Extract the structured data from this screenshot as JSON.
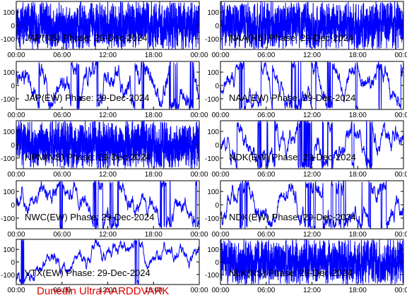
{
  "footer": {
    "text": "Dunedin Ultra AARDDVARK",
    "color": "#e00000"
  },
  "colors": {
    "trace": "#0000ff",
    "label": "#000000",
    "background": "#ffffff",
    "frame": "#000000"
  },
  "chart_data": [
    {
      "type": "line",
      "title": "JAP(NS) Phase: 29-Dec-2024",
      "x_ticks": [
        "00:00",
        "06:00",
        "12:00",
        "18:00",
        "00:00"
      ],
      "y_ticks": [
        "100",
        "0",
        "-100"
      ],
      "ylim": [
        -180,
        180
      ],
      "density": 0.9
    },
    {
      "type": "line",
      "title": "NAA(NS) Phase: 29-Dec-2024",
      "x_ticks": [
        "00:00",
        "06:00",
        "12:00",
        "18:00",
        "00:00"
      ],
      "y_ticks": [
        "100",
        "0",
        "-100"
      ],
      "ylim": [
        -180,
        180
      ],
      "density": 0.8
    },
    {
      "type": "line",
      "title": "JAP(EW) Phase: 29-Dec-2024",
      "x_ticks": [
        "00:00",
        "06:00",
        "12:00",
        "18:00",
        "00:00"
      ],
      "y_ticks": [
        "100",
        "0",
        "-100"
      ],
      "ylim": [
        -180,
        180
      ],
      "density": 0.6
    },
    {
      "type": "line",
      "title": "NAA(EW) Phase: 29-Dec-2024",
      "x_ticks": [
        "00:00",
        "06:00",
        "12:00",
        "18:00",
        "00:00"
      ],
      "y_ticks": [
        "100",
        "0",
        "-100"
      ],
      "ylim": [
        -180,
        180
      ],
      "density": 0.5
    },
    {
      "type": "line",
      "title": "NPM(NS) Phase: 29-Dec-2024",
      "x_ticks": [
        "00:00",
        "06:00",
        "12:00",
        "18:00",
        "00:00"
      ],
      "y_ticks": [
        "100",
        "0",
        "-100"
      ],
      "ylim": [
        -180,
        180
      ],
      "density": 0.95
    },
    {
      "type": "line",
      "title": "NDK(EW) Phase: 29-Dec-2024",
      "x_ticks": [
        "00:00",
        "06:00",
        "12:00",
        "18:00",
        "00:00"
      ],
      "y_ticks": [
        "100",
        "0",
        "-100"
      ],
      "ylim": [
        -180,
        180
      ],
      "density": 0.55
    },
    {
      "type": "line",
      "title": "NWC(EW) Phase: 29-Dec-2024",
      "x_ticks": [
        "00:00",
        "06:00",
        "12:00",
        "18:00",
        "00:00"
      ],
      "y_ticks": [
        "100",
        "0",
        "-100"
      ],
      "ylim": [
        -180,
        180
      ],
      "density": 0.5
    },
    {
      "type": "line",
      "title": "NDK(EW) Phase: 29-Dec-2024",
      "x_ticks": [
        "00:00",
        "06:00",
        "12:00",
        "18:00",
        "00:00"
      ],
      "y_ticks": [
        "100",
        "0",
        "-100"
      ],
      "ylim": [
        -180,
        180
      ],
      "density": 0.55
    },
    {
      "type": "line",
      "title": "VTX(EW) Phase: 29-Dec-2024",
      "x_ticks": [
        "00:00",
        "06:00",
        "12:00",
        "18:00",
        "00:00"
      ],
      "y_ticks": [
        "100",
        "0",
        "-100"
      ],
      "ylim": [
        -180,
        180
      ],
      "density": 0.35
    },
    {
      "type": "line",
      "title": "NLK(NS) Phase: 29-Dec-2024",
      "x_ticks": [
        "00:00",
        "06:00",
        "12:00",
        "18:00",
        "00:00"
      ],
      "y_ticks": [
        "100",
        "0",
        "-100"
      ],
      "ylim": [
        -180,
        180
      ],
      "density": 0.95
    }
  ]
}
